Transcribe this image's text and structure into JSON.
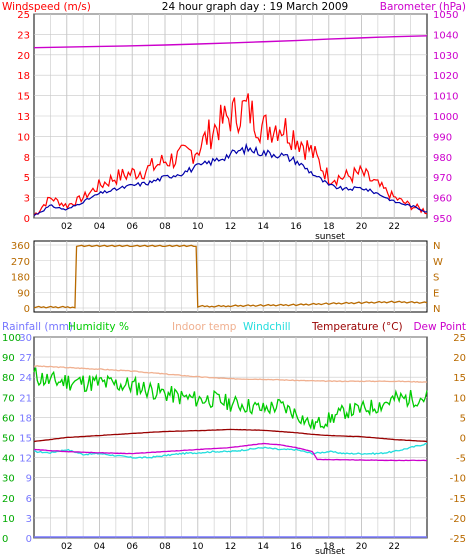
{
  "title": "24 hour graph day : 19 March 2009",
  "colors": {
    "wind": "#ff0000",
    "windAvg": "#0000aa",
    "baro": "#cc00cc",
    "dir": "#b86a00",
    "rain": "#7777ff",
    "humidity": "#00cc00",
    "indoor": "#f0b090",
    "windchill": "#22dddd",
    "temperature": "#990000",
    "dewpoint": "#cc00cc",
    "grid": "#c8c8c8",
    "axisGreen": "#00aa00"
  },
  "chart_data": [
    {
      "type": "line",
      "label_left": "Windspeed (m/s)",
      "label_right": "Barometer (hPa)",
      "left_ticks": [
        "0",
        "3",
        "5",
        "8",
        "10",
        "13",
        "15",
        "18",
        "20",
        "23",
        "25"
      ],
      "right_ticks": [
        "950",
        "960",
        "970",
        "980",
        "990",
        "1000",
        "1010",
        "1020",
        "1030",
        "1040",
        "1050"
      ],
      "x_ticks": [
        "02",
        "04",
        "06",
        "08",
        "10",
        "12",
        "14",
        "16",
        "18",
        "20",
        "22"
      ],
      "sunset_label": "sunset",
      "ylim_left": [
        0,
        25
      ],
      "ylim_right": [
        950,
        1050
      ],
      "series": [
        {
          "name": "Windspeed (m/s)",
          "x": [
            0,
            1,
            2,
            3,
            4,
            5,
            6,
            7,
            8,
            9,
            10,
            11,
            12,
            13,
            14,
            15,
            16,
            17,
            18,
            19,
            20,
            21,
            22,
            23,
            24
          ],
          "values": [
            0.3,
            2.5,
            1.5,
            2.5,
            4.0,
            5.0,
            5.5,
            6.0,
            7.0,
            7.5,
            8.5,
            11.0,
            12.5,
            13.5,
            11.0,
            11.5,
            10.0,
            8.0,
            5.0,
            5.0,
            5.5,
            4.0,
            2.5,
            1.5,
            0.8
          ]
        },
        {
          "name": "Windspeed avg",
          "x": [
            0,
            1,
            2,
            3,
            4,
            5,
            6,
            7,
            8,
            9,
            10,
            11,
            12,
            13,
            14,
            15,
            16,
            17,
            18,
            19,
            20,
            21,
            22,
            23,
            24
          ],
          "values": [
            0.3,
            1.5,
            1.0,
            2.0,
            3.0,
            3.5,
            4.0,
            4.3,
            5.0,
            5.5,
            6.3,
            7.0,
            7.8,
            8.5,
            8.0,
            7.8,
            7.0,
            5.5,
            4.0,
            3.5,
            3.7,
            3.0,
            2.0,
            1.5,
            0.8
          ]
        },
        {
          "name": "Barometer (hPa)",
          "x": [
            0,
            2,
            4,
            6,
            8,
            10,
            12,
            14,
            16,
            18,
            20,
            22,
            24
          ],
          "values": [
            1033.5,
            1033.8,
            1034.1,
            1034.4,
            1034.8,
            1035.3,
            1035.8,
            1036.4,
            1037.0,
            1037.7,
            1038.3,
            1038.9,
            1039.3
          ]
        }
      ]
    },
    {
      "type": "line",
      "left_ticks": [
        "0",
        "90",
        "180",
        "270",
        "360"
      ],
      "right_ticks": [
        "N",
        "E",
        "S",
        "W",
        "N"
      ],
      "ylim": [
        0,
        360
      ],
      "series": [
        {
          "name": "Wind direction",
          "x": [
            0,
            2.5,
            2.6,
            4,
            6,
            8,
            9.9,
            10,
            11,
            12,
            14,
            16,
            18,
            20,
            22,
            24
          ],
          "values": [
            5,
            5,
            355,
            355,
            355,
            355,
            355,
            10,
            10,
            12,
            15,
            18,
            25,
            30,
            35,
            30
          ]
        }
      ]
    },
    {
      "type": "line",
      "labels": {
        "rainfall": "Rainfall (mm)",
        "humidity": "Humidity %",
        "indoor": "Indoor temp",
        "windchill": "Windchill",
        "temperature": "Temperature (°C)",
        "dewpoint": "Dew Point"
      },
      "left_ticks_rain": [
        "0",
        "3",
        "6",
        "9",
        "12",
        "15",
        "18",
        "21",
        "24",
        "27",
        "30"
      ],
      "left_ticks_hum": [
        "0",
        "10",
        "20",
        "30",
        "40",
        "50",
        "60",
        "70",
        "80",
        "90",
        "100"
      ],
      "right_ticks": [
        "-25",
        "-20",
        "-15",
        "-10",
        "-5",
        "0",
        "5",
        "10",
        "15",
        "20",
        "25"
      ],
      "x_ticks": [
        "02",
        "04",
        "06",
        "08",
        "10",
        "12",
        "14",
        "16",
        "18",
        "20",
        "22"
      ],
      "sunset_label": "sunset",
      "ylim_right": [
        -25,
        25
      ],
      "series": [
        {
          "name": "Humidity %",
          "x": [
            0,
            1,
            2,
            4,
            6,
            8,
            9,
            10,
            11,
            12,
            13,
            14,
            15,
            16,
            17,
            18,
            19,
            20,
            21,
            22,
            24
          ],
          "values": [
            81,
            78,
            78,
            77,
            76,
            72,
            70,
            69,
            69,
            67,
            66,
            64,
            66,
            62,
            56,
            59,
            63,
            64,
            66,
            69,
            70
          ]
        },
        {
          "name": "Indoor temp",
          "x": [
            0,
            2,
            4,
            6,
            8,
            10,
            12,
            14,
            16,
            18,
            20,
            22,
            24
          ],
          "values": [
            17.8,
            17.4,
            17.0,
            16.5,
            15.8,
            15.1,
            14.6,
            14.5,
            14.2,
            14.0,
            14.0,
            14.0,
            13.8
          ]
        },
        {
          "name": "Windchill",
          "x": [
            0,
            1,
            2,
            3,
            4,
            5,
            6,
            7,
            8,
            9,
            10,
            11,
            12,
            13,
            14,
            15,
            16,
            17,
            18,
            19,
            20,
            21,
            22,
            23,
            24
          ],
          "values": [
            -3.5,
            -3.8,
            -3.0,
            -4.2,
            -4.0,
            -4.5,
            -5.0,
            -5.0,
            -4.5,
            -4.0,
            -3.8,
            -3.5,
            -3.5,
            -3.0,
            -2.5,
            -3.0,
            -3.0,
            -4.0,
            -3.5,
            -4.0,
            -4.0,
            -4.0,
            -3.5,
            -2.5,
            -1.5
          ]
        },
        {
          "name": "Temperature (°C)",
          "x": [
            0,
            1,
            2,
            4,
            6,
            8,
            10,
            12,
            14,
            16,
            17,
            18,
            20,
            22,
            24
          ],
          "values": [
            -1.0,
            -0.5,
            0.0,
            0.5,
            1.0,
            1.5,
            1.7,
            2.0,
            1.8,
            1.2,
            0.8,
            0.5,
            0.2,
            -0.5,
            -1.0
          ]
        },
        {
          "name": "Dew Point",
          "x": [
            0,
            2,
            4,
            6,
            8,
            10,
            12,
            13,
            14,
            15,
            16,
            17,
            17.3,
            18,
            20,
            22,
            24
          ],
          "values": [
            -3.0,
            -3.5,
            -3.8,
            -4.0,
            -3.5,
            -3.0,
            -2.5,
            -2.0,
            -1.5,
            -1.8,
            -2.5,
            -3.5,
            -5.5,
            -5.5,
            -5.6,
            -5.7,
            -5.7
          ]
        }
      ]
    }
  ]
}
